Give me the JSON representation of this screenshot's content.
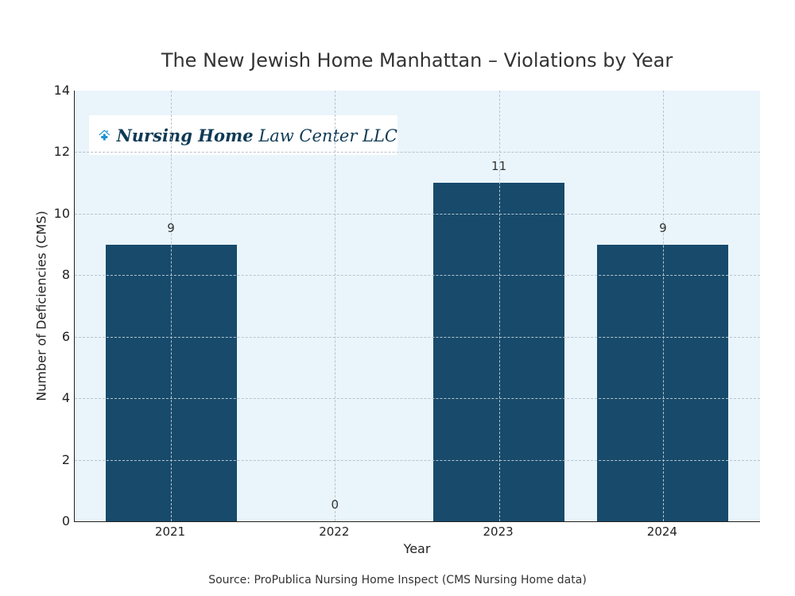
{
  "chart_data": {
    "type": "bar",
    "title": "The New Jewish Home Manhattan – Violations by Year",
    "xlabel": "Year",
    "ylabel": "Number of Deficiencies (CMS)",
    "categories": [
      "2021",
      "2022",
      "2023",
      "2024"
    ],
    "values": [
      9,
      0,
      11,
      9
    ],
    "ylim": [
      0,
      14
    ],
    "yticks": [
      0,
      2,
      4,
      6,
      8,
      10,
      12,
      14
    ],
    "grid": true,
    "bar_color": "#174a6b",
    "background_color": "#eaf4fb"
  },
  "logo": {
    "bold": "Nursing Home",
    "regular": "Law Center LLC"
  },
  "source": "Source: ProPublica Nursing Home Inspect (CMS Nursing Home data)"
}
